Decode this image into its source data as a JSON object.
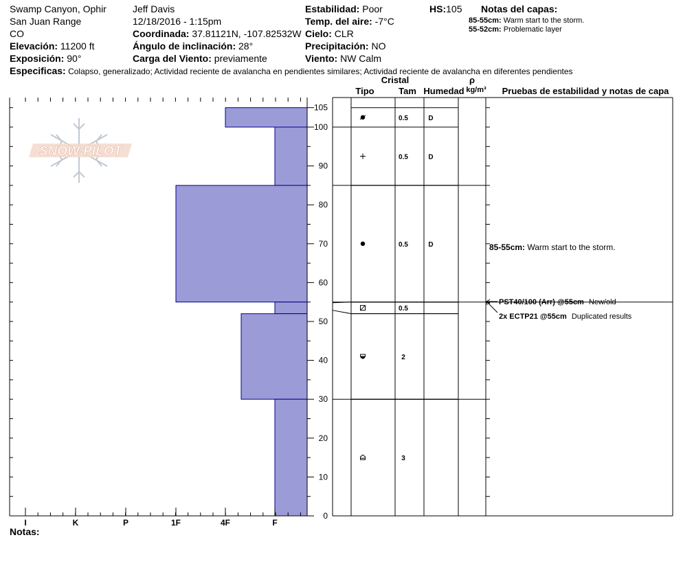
{
  "header": {
    "location": "Swamp Canyon, Ophir",
    "range": "San Juan Range",
    "state": "CO",
    "elevation_label": "Elevación:",
    "elevation": "11200 ft",
    "aspect_label": "Exposición:",
    "aspect": "90°",
    "observer": "Jeff Davis",
    "datetime": "12/18/2016 - 1:15pm",
    "coord_label": "Coordinada:",
    "coord": "37.81121N, -107.82532W",
    "slope_label": "Ángulo de inclinación:",
    "slope": "28°",
    "windload_label": "Carga del Viento:",
    "windload": "previamente",
    "stability_label": "Estabilidad:",
    "stability": "Poor",
    "airtemp_label": "Temp. del aire:",
    "airtemp": "-7°C",
    "sky_label": "Cielo:",
    "sky": "CLR",
    "precip_label": "Precipitación:",
    "precip": "NO",
    "wind_label": "Viento:",
    "wind": "NW Calm",
    "hs_label": "HS:",
    "hs": "105",
    "layer_notes_title": "Notas del capas:",
    "layer_notes": [
      {
        "range": "85-55cm:",
        "text": "Warm start to the storm."
      },
      {
        "range": "55-52cm:",
        "text": "Problematic layer"
      }
    ],
    "spec_label": "Especificas:",
    "spec_text": "Colapso, generalizado; Actividad reciente de avalancha en pendientes similares; Actividad reciente de avalancha en diferentes pendientes"
  },
  "logo": {
    "text": "SNOW PILOT"
  },
  "table_headers": {
    "cristal": "Cristal",
    "tipo": "Tipo",
    "tam": "Tam",
    "humedad": "Humedad",
    "rho": "ρ",
    "density_unit": "kg/m³",
    "tests_header": "Pruebas de estabilidad y notas de capa"
  },
  "notes_label": "Notas:",
  "colors": {
    "layer_fill": "#9b9bd7",
    "layer_stroke": "#00008b"
  },
  "chart_data": {
    "type": "bar",
    "title": "",
    "y_axis": {
      "label": "",
      "range": [
        0,
        105
      ],
      "ticks": [
        0,
        10,
        20,
        30,
        40,
        50,
        60,
        70,
        80,
        90,
        100,
        105
      ]
    },
    "x_axis": {
      "label": "",
      "hardness_categories": [
        "I",
        "K",
        "P",
        "1F",
        "4F",
        "F"
      ]
    },
    "layers": [
      {
        "top": 105,
        "bottom": 100,
        "hardness": "4F",
        "crystal": "ppgp-icon",
        "size": "0.5",
        "moisture": "D"
      },
      {
        "top": 100,
        "bottom": 85,
        "hardness": "F",
        "crystal": "pp-icon",
        "size": "0.5",
        "moisture": "D"
      },
      {
        "top": 85,
        "bottom": 55,
        "hardness": "1F",
        "crystal": "rg-icon",
        "size": "0.5",
        "moisture": "D"
      },
      {
        "top": 55,
        "bottom": 52,
        "hardness": "F",
        "crystal": "fc-icon",
        "size": "0.5",
        "moisture": ""
      },
      {
        "top": 52,
        "bottom": 30,
        "hardness": "4F-",
        "crystal": "fcxr-icon",
        "size": "2",
        "moisture": ""
      },
      {
        "top": 30,
        "bottom": 0,
        "hardness": "F",
        "crystal": "dh-icon",
        "size": "3",
        "moisture": ""
      }
    ],
    "layer_comments": [
      {
        "depth_label": "85-55cm:",
        "text": "Warm start to the storm."
      }
    ],
    "stability_tests": [
      {
        "depth": 55,
        "result": "PST40/100 (Arr) @55cm",
        "note": "New/old"
      },
      {
        "depth": 55,
        "result": "2x ECTP21 @55cm",
        "note": "Duplicated results"
      }
    ]
  }
}
